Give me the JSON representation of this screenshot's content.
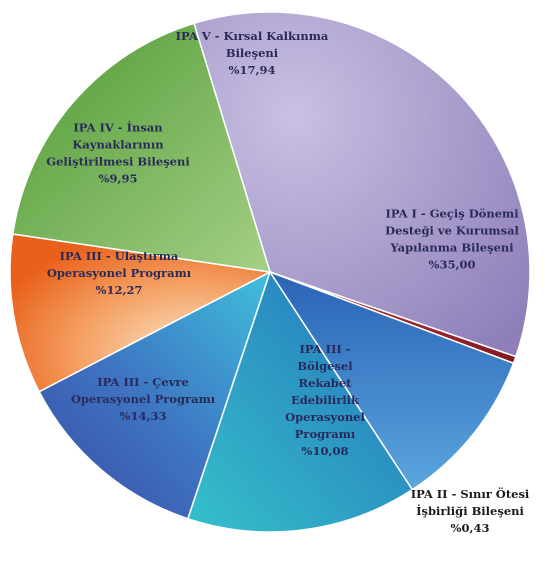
{
  "chart_data": {
    "type": "pie",
    "title": "",
    "slices": [
      {
        "lines": [
          "IPA I - Geçiş Dönemi",
          "Desteği ve Kurumsal",
          "Yapılanma Bileşeni",
          "%35,00"
        ],
        "value": 35.0,
        "color": "#a99ccb"
      },
      {
        "lines": [
          "IPA II - Sınır Ötesi",
          "İşbirliği Bileşeni",
          "%0,43"
        ],
        "value": 0.43,
        "color": "#a3262c"
      },
      {
        "lines": [
          "IPA III -",
          "Bölgesel",
          "Rekabet",
          "Edebilirlik",
          "Operasyonel",
          "Programı",
          "%10,08"
        ],
        "value": 10.08,
        "color": "#3f7fc4"
      },
      {
        "lines": [
          "IPA III - Çevre",
          "Operasyonel Programı",
          "%14,33"
        ],
        "value": 14.33,
        "color": "#2fb7c8"
      },
      {
        "lines": [
          "IPA III - Ulaştırma",
          "Operasyonel Programı",
          "%12,27"
        ],
        "value": 12.27,
        "color": "#3d56a8"
      },
      {
        "lines": [
          "IPA IV - İnsan",
          "Kaynaklarının",
          "Geliştirilmesi Bileşeni",
          "%9,95"
        ],
        "value": 9.95,
        "color": "#f08a3c"
      },
      {
        "lines": [
          "IPA V - Kırsal Kalkınma",
          "Bileşeni",
          "%17,94"
        ],
        "value": 17.94,
        "color": "#6fae45"
      }
    ]
  }
}
